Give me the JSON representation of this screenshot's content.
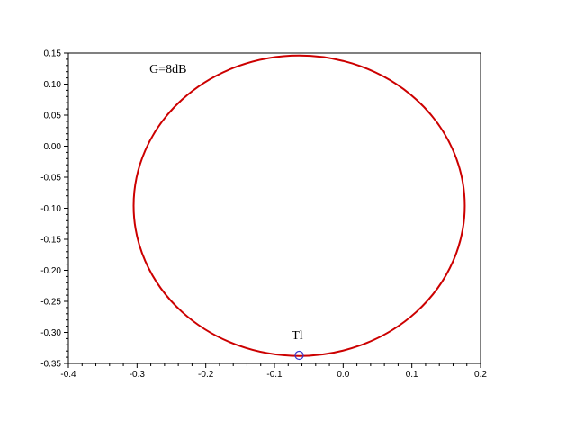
{
  "chart_data": {
    "type": "line",
    "title": "",
    "xlabel": "",
    "ylabel": "",
    "xlim": [
      -0.4,
      0.2
    ],
    "ylim": [
      -0.35,
      0.15
    ],
    "xticks": [
      "-0.4",
      "-0.3",
      "-0.2",
      "-0.1",
      "0.0",
      "0.1",
      "0.2"
    ],
    "yticks": [
      "0.15",
      "0.10",
      "0.05",
      "0.00",
      "-0.05",
      "-0.10",
      "-0.15",
      "-0.20",
      "-0.25",
      "-0.30",
      "-0.35"
    ],
    "grid": false,
    "series": [
      {
        "shape": "circle",
        "center": [
          -0.064,
          -0.096
        ],
        "radius_x": 0.241,
        "radius_y": 0.242,
        "color": "#cc0000"
      }
    ],
    "markers": [
      {
        "label": "Tl",
        "x": -0.064,
        "y": -0.337,
        "color": "#3333cc"
      }
    ],
    "annotations": [
      {
        "text": "G=8dB",
        "x": -0.282,
        "y": 0.118
      }
    ]
  }
}
